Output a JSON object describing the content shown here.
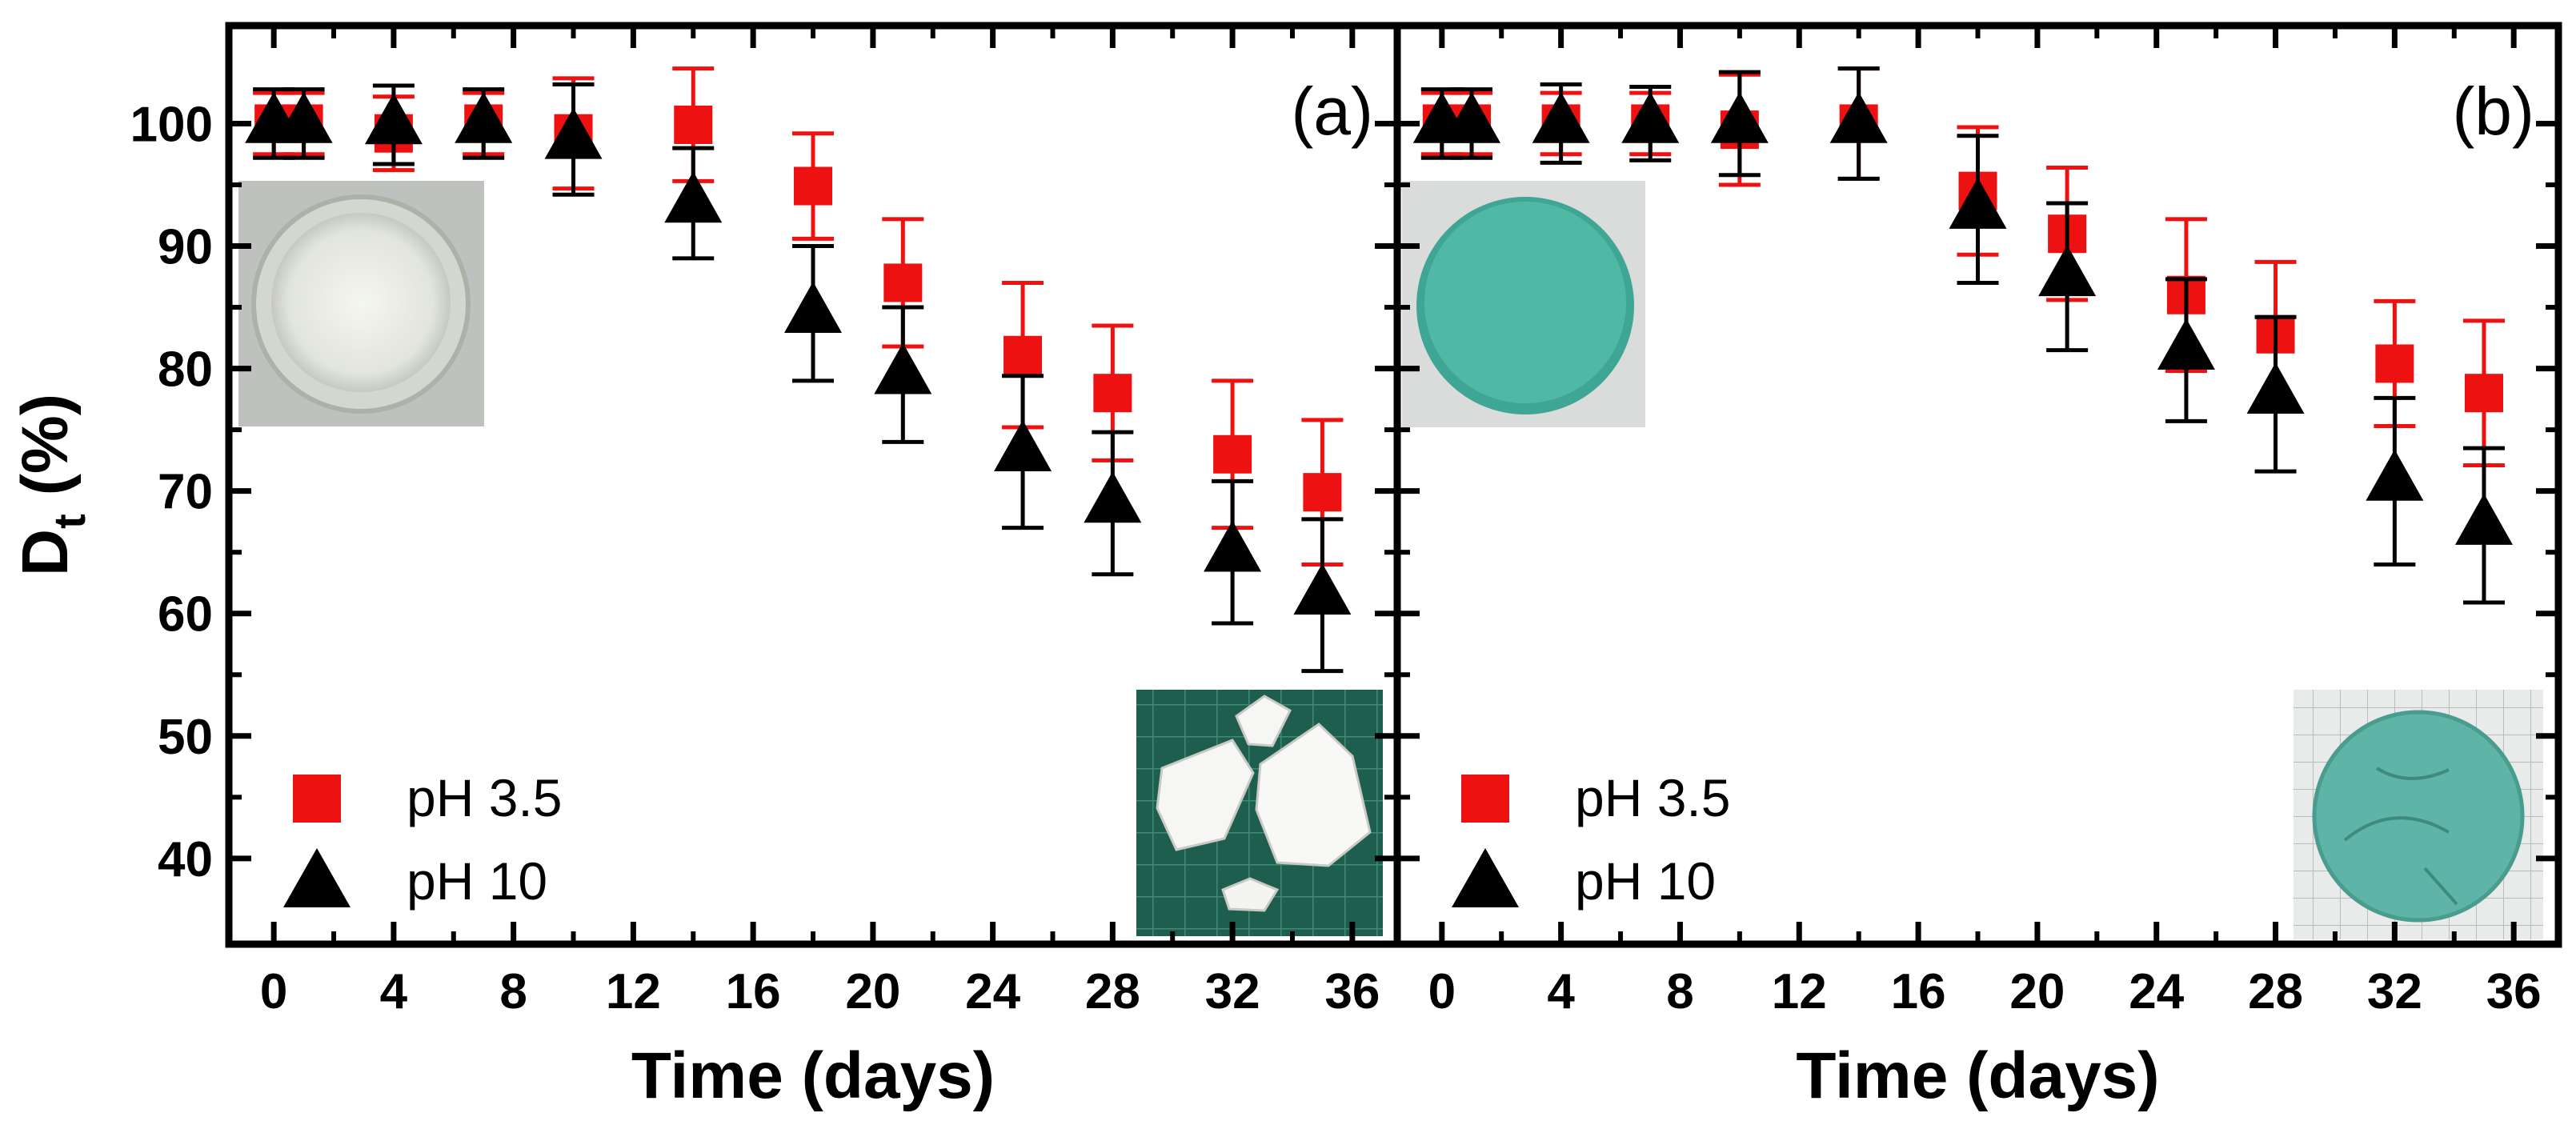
{
  "chart_data": [
    {
      "type": "scatter",
      "panel_label": "(a)",
      "xlabel": "Time (days)",
      "ylabel": "D",
      "ylabel_sub": "t",
      "ylabel_unit": "(%)",
      "xlim": [
        -1.5,
        37.5
      ],
      "ylim": [
        33,
        108
      ],
      "xticks": [
        0,
        4,
        8,
        12,
        16,
        20,
        24,
        28,
        32,
        36
      ],
      "yticks": [
        40,
        50,
        60,
        70,
        80,
        90,
        100
      ],
      "legend_position": "bottom-left",
      "insets": [
        {
          "name": "clear-disk-photo",
          "position": "top-left"
        },
        {
          "name": "broken-fragments-photo",
          "position": "bottom-right"
        }
      ],
      "series": [
        {
          "name": "pH 3.5",
          "marker": "square",
          "color": "#ee1111",
          "x": [
            0,
            1,
            4,
            7,
            10,
            14,
            18,
            21,
            25,
            28,
            32,
            35
          ],
          "y": [
            100,
            100,
            99.2,
            100,
            99.2,
            99.9,
            94.9,
            87.0,
            81.1,
            78.0,
            73.0,
            69.9
          ],
          "err": [
            2.5,
            2.5,
            3.0,
            2.5,
            4.5,
            4.6,
            4.3,
            5.2,
            5.9,
            5.5,
            6.0,
            5.9
          ]
        },
        {
          "name": "pH 10",
          "marker": "triangle",
          "color": "#000000",
          "x": [
            0,
            1,
            4,
            7,
            10,
            14,
            18,
            21,
            25,
            28,
            32,
            35
          ],
          "y": [
            100,
            100,
            99.9,
            100,
            98.7,
            93.5,
            84.5,
            79.5,
            73.2,
            69.0,
            65.0,
            61.5
          ],
          "err": [
            2.8,
            2.8,
            3.2,
            2.8,
            4.5,
            4.5,
            5.5,
            5.5,
            6.2,
            5.8,
            5.8,
            6.2
          ]
        }
      ]
    },
    {
      "type": "scatter",
      "panel_label": "(b)",
      "xlabel": "Time (days)",
      "xlim": [
        -1.5,
        37.5
      ],
      "ylim": [
        33,
        108
      ],
      "xticks": [
        0,
        4,
        8,
        12,
        16,
        20,
        24,
        28,
        32,
        36
      ],
      "yticks": [
        40,
        50,
        60,
        70,
        80,
        90,
        100
      ],
      "legend_position": "bottom-left",
      "insets": [
        {
          "name": "teal-disk-photo",
          "position": "top-left"
        },
        {
          "name": "cracked-teal-disk-photo",
          "position": "bottom-right"
        }
      ],
      "series": [
        {
          "name": "pH 3.5",
          "marker": "square",
          "color": "#ee1111",
          "x": [
            0,
            1,
            4,
            7,
            10,
            14,
            18,
            21,
            25,
            28,
            32,
            35
          ],
          "y": [
            100,
            100,
            100,
            100,
            99.5,
            100,
            94.5,
            91.0,
            86.0,
            82.8,
            80.4,
            78.0
          ],
          "err": [
            2.5,
            2.5,
            2.5,
            2.5,
            4.5,
            4.5,
            5.2,
            5.4,
            6.2,
            5.9,
            5.1,
            5.9
          ]
        },
        {
          "name": "pH 10",
          "marker": "triangle",
          "color": "#000000",
          "x": [
            0,
            1,
            4,
            7,
            10,
            14,
            18,
            21,
            25,
            28,
            32,
            35
          ],
          "y": [
            100,
            100,
            100,
            100,
            100,
            100,
            93.0,
            87.5,
            81.5,
            77.9,
            70.8,
            67.2
          ],
          "err": [
            2.8,
            2.8,
            3.2,
            3.0,
            4.2,
            4.5,
            6.0,
            6.0,
            5.8,
            6.3,
            6.8,
            6.3
          ]
        }
      ]
    }
  ]
}
